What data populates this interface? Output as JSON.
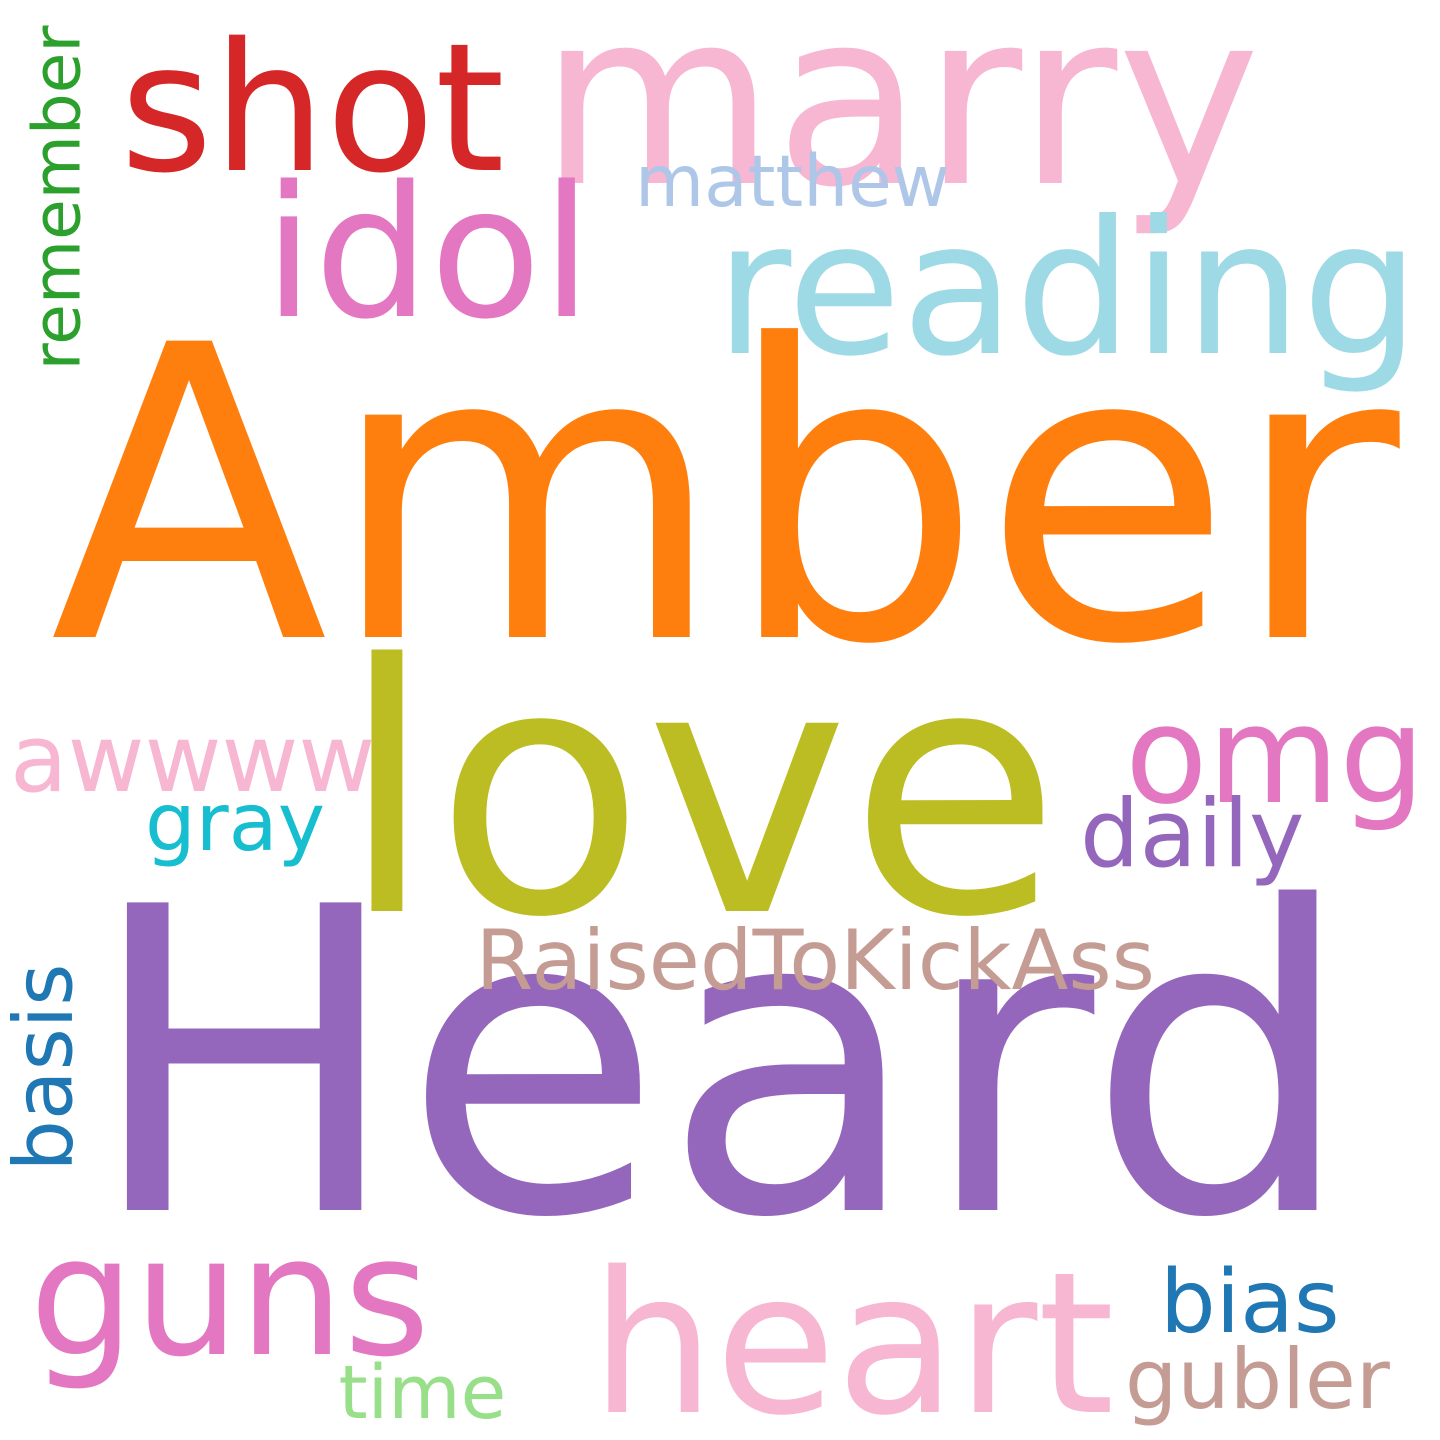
{
  "words": [
    {
      "text": "Amber",
      "color": "#ff7f0e"
    },
    {
      "text": "Heard",
      "color": "#9467bd"
    },
    {
      "text": "love",
      "color": "#bcbd22"
    },
    {
      "text": "marry",
      "color": "#f7b6d2"
    },
    {
      "text": "reading",
      "color": "#9edae5"
    },
    {
      "text": "shot",
      "color": "#d62728"
    },
    {
      "text": "idol",
      "color": "#e377c2"
    },
    {
      "text": "matthew",
      "color": "#aec7e8"
    },
    {
      "text": "remember",
      "color": "#2ca02c"
    },
    {
      "text": "omg",
      "color": "#e377c2"
    },
    {
      "text": "awwww",
      "color": "#f7b6d2"
    },
    {
      "text": "gray",
      "color": "#17becf"
    },
    {
      "text": "daily",
      "color": "#9467bd"
    },
    {
      "text": "RaisedToKickAss",
      "color": "#c49c94"
    },
    {
      "text": "basis",
      "color": "#1f77b4"
    },
    {
      "text": "guns",
      "color": "#e377c2"
    },
    {
      "text": "heart",
      "color": "#f7b6d2"
    },
    {
      "text": "bias",
      "color": "#1f77b4"
    },
    {
      "text": "gubler",
      "color": "#c49c94"
    },
    {
      "text": "time",
      "color": "#98df8a"
    }
  ]
}
